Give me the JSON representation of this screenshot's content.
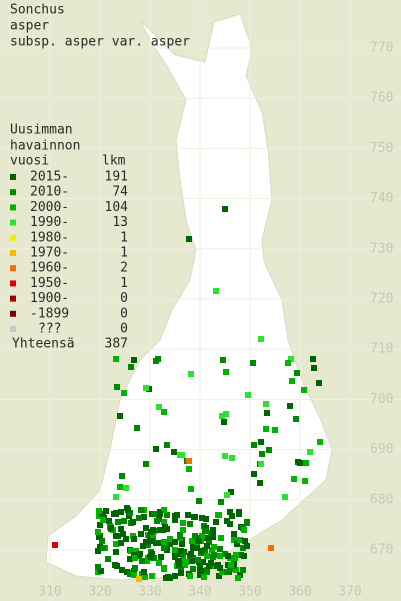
{
  "title_lines": [
    "Sonchus",
    "asper",
    "subsp. asper var. asper"
  ],
  "legend": {
    "header_lines": [
      "Uusimman",
      "havainnon"
    ],
    "year_header": "vuosi",
    "count_header": "lkm",
    "rows": [
      {
        "label": "2015-",
        "count": 191,
        "color": "#006400"
      },
      {
        "label": "2010-",
        "count": 74,
        "color": "#008800"
      },
      {
        "label": "2000-",
        "count": 104,
        "color": "#00b400"
      },
      {
        "label": "1990-",
        "count": 13,
        "color": "#30e030"
      },
      {
        "label": "1980-",
        "count": 1,
        "color": "#f0f000"
      },
      {
        "label": "1970-",
        "count": 1,
        "color": "#f0c000"
      },
      {
        "label": "1960-",
        "count": 2,
        "color": "#f07000"
      },
      {
        "label": "1950-",
        "count": 1,
        "color": "#e00000"
      },
      {
        "label": "1900-",
        "count": 0,
        "color": "#a80000"
      },
      {
        "label": "-1899",
        "count": 0,
        "color": "#780000"
      },
      {
        "label": "???",
        "count": 0,
        "color": "#c8c8c8"
      }
    ],
    "total_label": "Yhteensä",
    "total": 387
  },
  "grid_labels": {
    "north": [
      770,
      760,
      750,
      740,
      730,
      720,
      710,
      700,
      690,
      680,
      670
    ],
    "east": [
      310,
      320,
      330,
      340,
      350,
      360,
      370
    ]
  }
}
